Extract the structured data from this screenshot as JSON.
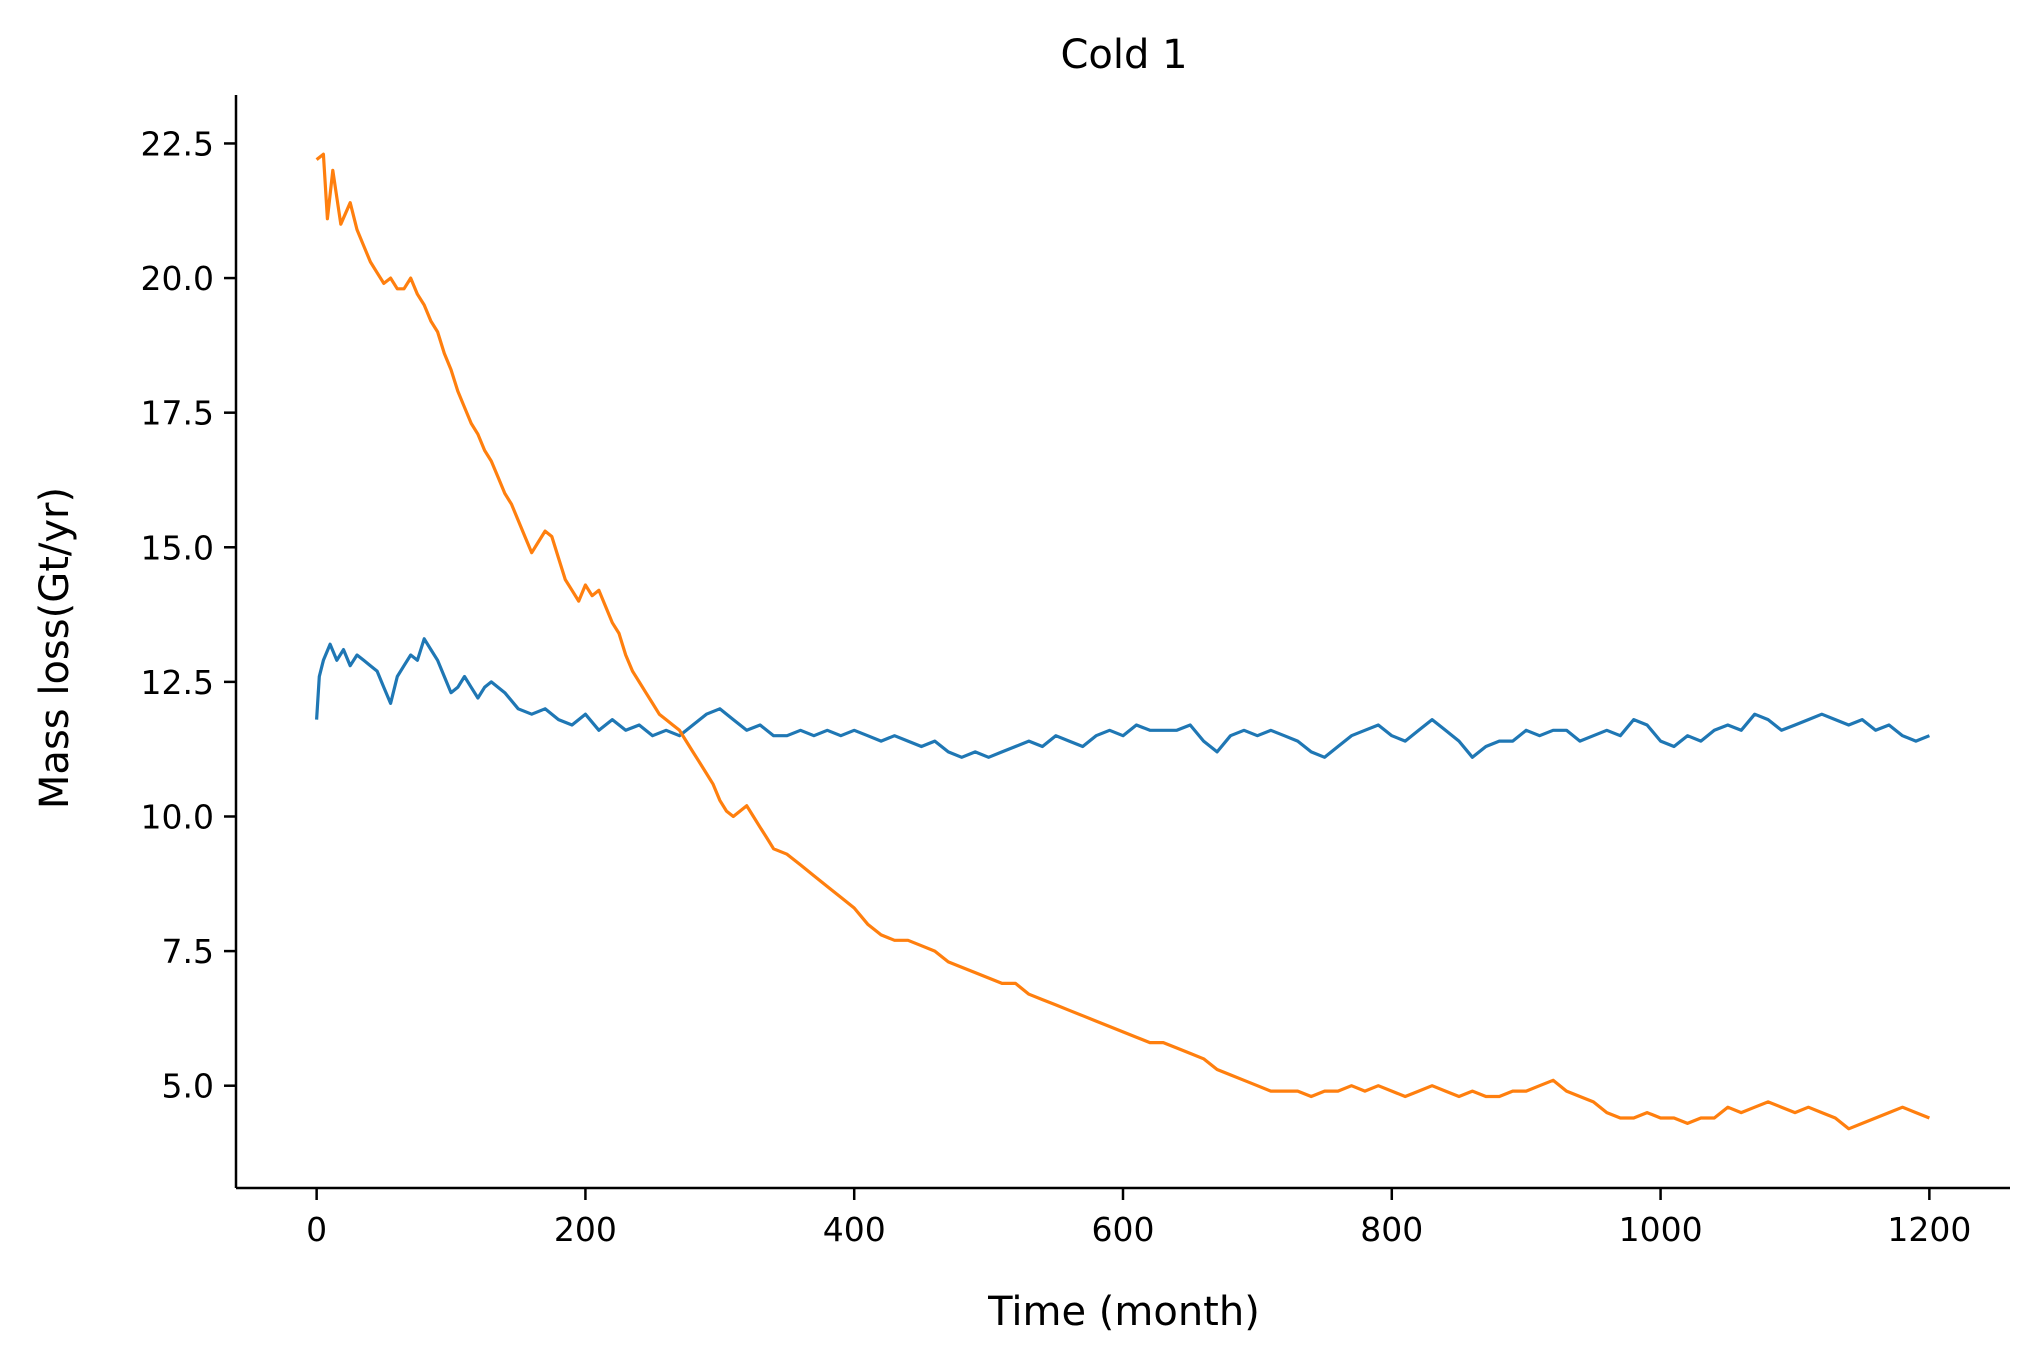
{
  "chart_data": {
    "type": "line",
    "title": "Cold 1",
    "xlabel": "Time (month)",
    "ylabel": "Mass loss(Gt/yr)",
    "xlim": [
      -60,
      1260
    ],
    "ylim": [
      3.1,
      23.4
    ],
    "x_ticks": [
      0,
      200,
      400,
      600,
      800,
      1000,
      1200
    ],
    "y_ticks": [
      5.0,
      7.5,
      10.0,
      12.5,
      15.0,
      17.5,
      20.0,
      22.5
    ],
    "grid": false,
    "legend": "none",
    "series": [
      {
        "color": "#1f77b4",
        "points": [
          [
            0,
            11.8
          ],
          [
            2,
            12.6
          ],
          [
            5,
            12.9
          ],
          [
            10,
            13.2
          ],
          [
            15,
            12.9
          ],
          [
            20,
            13.1
          ],
          [
            25,
            12.8
          ],
          [
            30,
            13.0
          ],
          [
            35,
            12.9
          ],
          [
            40,
            12.8
          ],
          [
            45,
            12.7
          ],
          [
            50,
            12.4
          ],
          [
            55,
            12.1
          ],
          [
            60,
            12.6
          ],
          [
            65,
            12.8
          ],
          [
            70,
            13.0
          ],
          [
            75,
            12.9
          ],
          [
            80,
            13.3
          ],
          [
            85,
            13.1
          ],
          [
            90,
            12.9
          ],
          [
            95,
            12.6
          ],
          [
            100,
            12.3
          ],
          [
            105,
            12.4
          ],
          [
            110,
            12.6
          ],
          [
            115,
            12.4
          ],
          [
            120,
            12.2
          ],
          [
            125,
            12.4
          ],
          [
            130,
            12.5
          ],
          [
            140,
            12.3
          ],
          [
            150,
            12.0
          ],
          [
            160,
            11.9
          ],
          [
            170,
            12.0
          ],
          [
            180,
            11.8
          ],
          [
            190,
            11.7
          ],
          [
            200,
            11.9
          ],
          [
            210,
            11.6
          ],
          [
            220,
            11.8
          ],
          [
            230,
            11.6
          ],
          [
            240,
            11.7
          ],
          [
            250,
            11.5
          ],
          [
            260,
            11.6
          ],
          [
            270,
            11.5
          ],
          [
            280,
            11.7
          ],
          [
            290,
            11.9
          ],
          [
            300,
            12.0
          ],
          [
            310,
            11.8
          ],
          [
            320,
            11.6
          ],
          [
            330,
            11.7
          ],
          [
            340,
            11.5
          ],
          [
            350,
            11.5
          ],
          [
            360,
            11.6
          ],
          [
            370,
            11.5
          ],
          [
            380,
            11.6
          ],
          [
            390,
            11.5
          ],
          [
            400,
            11.6
          ],
          [
            410,
            11.5
          ],
          [
            420,
            11.4
          ],
          [
            430,
            11.5
          ],
          [
            440,
            11.4
          ],
          [
            450,
            11.3
          ],
          [
            460,
            11.4
          ],
          [
            470,
            11.2
          ],
          [
            480,
            11.1
          ],
          [
            490,
            11.2
          ],
          [
            500,
            11.1
          ],
          [
            510,
            11.2
          ],
          [
            520,
            11.3
          ],
          [
            530,
            11.4
          ],
          [
            540,
            11.3
          ],
          [
            550,
            11.5
          ],
          [
            560,
            11.4
          ],
          [
            570,
            11.3
          ],
          [
            580,
            11.5
          ],
          [
            590,
            11.6
          ],
          [
            600,
            11.5
          ],
          [
            610,
            11.7
          ],
          [
            620,
            11.6
          ],
          [
            630,
            11.6
          ],
          [
            640,
            11.6
          ],
          [
            650,
            11.7
          ],
          [
            660,
            11.4
          ],
          [
            670,
            11.2
          ],
          [
            680,
            11.5
          ],
          [
            690,
            11.6
          ],
          [
            700,
            11.5
          ],
          [
            710,
            11.6
          ],
          [
            720,
            11.5
          ],
          [
            730,
            11.4
          ],
          [
            740,
            11.2
          ],
          [
            750,
            11.1
          ],
          [
            760,
            11.3
          ],
          [
            770,
            11.5
          ],
          [
            780,
            11.6
          ],
          [
            790,
            11.7
          ],
          [
            800,
            11.5
          ],
          [
            810,
            11.4
          ],
          [
            820,
            11.6
          ],
          [
            830,
            11.8
          ],
          [
            840,
            11.6
          ],
          [
            850,
            11.4
          ],
          [
            860,
            11.1
          ],
          [
            870,
            11.3
          ],
          [
            880,
            11.4
          ],
          [
            890,
            11.4
          ],
          [
            900,
            11.6
          ],
          [
            910,
            11.5
          ],
          [
            920,
            11.6
          ],
          [
            930,
            11.6
          ],
          [
            940,
            11.4
          ],
          [
            950,
            11.5
          ],
          [
            960,
            11.6
          ],
          [
            970,
            11.5
          ],
          [
            980,
            11.8
          ],
          [
            990,
            11.7
          ],
          [
            1000,
            11.4
          ],
          [
            1010,
            11.3
          ],
          [
            1020,
            11.5
          ],
          [
            1030,
            11.4
          ],
          [
            1040,
            11.6
          ],
          [
            1050,
            11.7
          ],
          [
            1060,
            11.6
          ],
          [
            1070,
            11.9
          ],
          [
            1080,
            11.8
          ],
          [
            1090,
            11.6
          ],
          [
            1100,
            11.7
          ],
          [
            1110,
            11.8
          ],
          [
            1120,
            11.9
          ],
          [
            1130,
            11.8
          ],
          [
            1140,
            11.7
          ],
          [
            1150,
            11.8
          ],
          [
            1160,
            11.6
          ],
          [
            1170,
            11.7
          ],
          [
            1180,
            11.5
          ],
          [
            1190,
            11.4
          ],
          [
            1200,
            11.5
          ]
        ]
      },
      {
        "color": "#ff7f0e",
        "points": [
          [
            0,
            22.2
          ],
          [
            5,
            22.3
          ],
          [
            8,
            21.1
          ],
          [
            12,
            22.0
          ],
          [
            18,
            21.0
          ],
          [
            25,
            21.4
          ],
          [
            30,
            20.9
          ],
          [
            35,
            20.6
          ],
          [
            40,
            20.3
          ],
          [
            45,
            20.1
          ],
          [
            50,
            19.9
          ],
          [
            55,
            20.0
          ],
          [
            60,
            19.8
          ],
          [
            65,
            19.8
          ],
          [
            70,
            20.0
          ],
          [
            75,
            19.7
          ],
          [
            80,
            19.5
          ],
          [
            85,
            19.2
          ],
          [
            90,
            19.0
          ],
          [
            95,
            18.6
          ],
          [
            100,
            18.3
          ],
          [
            105,
            17.9
          ],
          [
            110,
            17.6
          ],
          [
            115,
            17.3
          ],
          [
            120,
            17.1
          ],
          [
            125,
            16.8
          ],
          [
            130,
            16.6
          ],
          [
            135,
            16.3
          ],
          [
            140,
            16.0
          ],
          [
            145,
            15.8
          ],
          [
            150,
            15.5
          ],
          [
            155,
            15.2
          ],
          [
            160,
            14.9
          ],
          [
            165,
            15.1
          ],
          [
            170,
            15.3
          ],
          [
            175,
            15.2
          ],
          [
            180,
            14.8
          ],
          [
            185,
            14.4
          ],
          [
            190,
            14.2
          ],
          [
            195,
            14.0
          ],
          [
            200,
            14.3
          ],
          [
            205,
            14.1
          ],
          [
            210,
            14.2
          ],
          [
            215,
            13.9
          ],
          [
            220,
            13.6
          ],
          [
            225,
            13.4
          ],
          [
            230,
            13.0
          ],
          [
            235,
            12.7
          ],
          [
            240,
            12.5
          ],
          [
            245,
            12.3
          ],
          [
            250,
            12.1
          ],
          [
            255,
            11.9
          ],
          [
            260,
            11.8
          ],
          [
            265,
            11.7
          ],
          [
            270,
            11.6
          ],
          [
            275,
            11.4
          ],
          [
            280,
            11.2
          ],
          [
            285,
            11.0
          ],
          [
            290,
            10.8
          ],
          [
            295,
            10.6
          ],
          [
            300,
            10.3
          ],
          [
            305,
            10.1
          ],
          [
            310,
            10.0
          ],
          [
            315,
            10.1
          ],
          [
            320,
            10.2
          ],
          [
            325,
            10.0
          ],
          [
            330,
            9.8
          ],
          [
            335,
            9.6
          ],
          [
            340,
            9.4
          ],
          [
            350,
            9.3
          ],
          [
            360,
            9.1
          ],
          [
            370,
            8.9
          ],
          [
            380,
            8.7
          ],
          [
            390,
            8.5
          ],
          [
            400,
            8.3
          ],
          [
            410,
            8.0
          ],
          [
            420,
            7.8
          ],
          [
            430,
            7.7
          ],
          [
            440,
            7.7
          ],
          [
            450,
            7.6
          ],
          [
            460,
            7.5
          ],
          [
            470,
            7.3
          ],
          [
            480,
            7.2
          ],
          [
            490,
            7.1
          ],
          [
            500,
            7.0
          ],
          [
            510,
            6.9
          ],
          [
            520,
            6.9
          ],
          [
            530,
            6.7
          ],
          [
            540,
            6.6
          ],
          [
            550,
            6.5
          ],
          [
            560,
            6.4
          ],
          [
            570,
            6.3
          ],
          [
            580,
            6.2
          ],
          [
            590,
            6.1
          ],
          [
            600,
            6.0
          ],
          [
            610,
            5.9
          ],
          [
            620,
            5.8
          ],
          [
            630,
            5.8
          ],
          [
            640,
            5.7
          ],
          [
            650,
            5.6
          ],
          [
            660,
            5.5
          ],
          [
            670,
            5.3
          ],
          [
            680,
            5.2
          ],
          [
            690,
            5.1
          ],
          [
            700,
            5.0
          ],
          [
            710,
            4.9
          ],
          [
            720,
            4.9
          ],
          [
            730,
            4.9
          ],
          [
            740,
            4.8
          ],
          [
            750,
            4.9
          ],
          [
            760,
            4.9
          ],
          [
            770,
            5.0
          ],
          [
            780,
            4.9
          ],
          [
            790,
            5.0
          ],
          [
            800,
            4.9
          ],
          [
            810,
            4.8
          ],
          [
            820,
            4.9
          ],
          [
            830,
            5.0
          ],
          [
            840,
            4.9
          ],
          [
            850,
            4.8
          ],
          [
            860,
            4.9
          ],
          [
            870,
            4.8
          ],
          [
            880,
            4.8
          ],
          [
            890,
            4.9
          ],
          [
            900,
            4.9
          ],
          [
            910,
            5.0
          ],
          [
            920,
            5.1
          ],
          [
            930,
            4.9
          ],
          [
            940,
            4.8
          ],
          [
            950,
            4.7
          ],
          [
            960,
            4.5
          ],
          [
            970,
            4.4
          ],
          [
            980,
            4.4
          ],
          [
            990,
            4.5
          ],
          [
            1000,
            4.4
          ],
          [
            1010,
            4.4
          ],
          [
            1020,
            4.3
          ],
          [
            1030,
            4.4
          ],
          [
            1040,
            4.4
          ],
          [
            1050,
            4.6
          ],
          [
            1060,
            4.5
          ],
          [
            1070,
            4.6
          ],
          [
            1080,
            4.7
          ],
          [
            1090,
            4.6
          ],
          [
            1100,
            4.5
          ],
          [
            1110,
            4.6
          ],
          [
            1120,
            4.5
          ],
          [
            1130,
            4.4
          ],
          [
            1140,
            4.2
          ],
          [
            1150,
            4.3
          ],
          [
            1160,
            4.4
          ],
          [
            1170,
            4.5
          ],
          [
            1180,
            4.6
          ],
          [
            1190,
            4.5
          ],
          [
            1200,
            4.4
          ]
        ]
      }
    ]
  }
}
